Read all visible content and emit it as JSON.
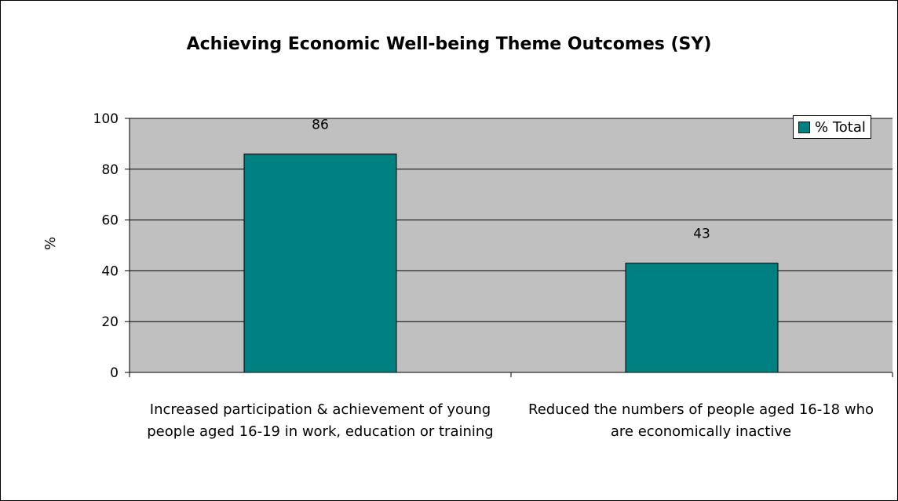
{
  "chart_data": {
    "type": "bar",
    "title": "Achieving Economic Well-being Theme Outcomes (SY)",
    "ylabel": "%",
    "xlabel": "",
    "ylim": [
      0,
      100
    ],
    "yticks": [
      "0",
      "20",
      "40",
      "60",
      "80",
      "100"
    ],
    "categories": [
      "Increased participation & achievement of young people aged 16-19 in work, education or training",
      "Reduced the numbers of people aged 16-18 who are economically inactive"
    ],
    "series": [
      {
        "name": "% Total",
        "values": [
          86,
          43
        ],
        "labels": [
          "86",
          "43"
        ]
      }
    ],
    "grid": true,
    "legend_position": "top-right"
  },
  "colors": {
    "bar": "#008080",
    "plot_bg": "#c0c0c0",
    "grid": "#000000"
  }
}
